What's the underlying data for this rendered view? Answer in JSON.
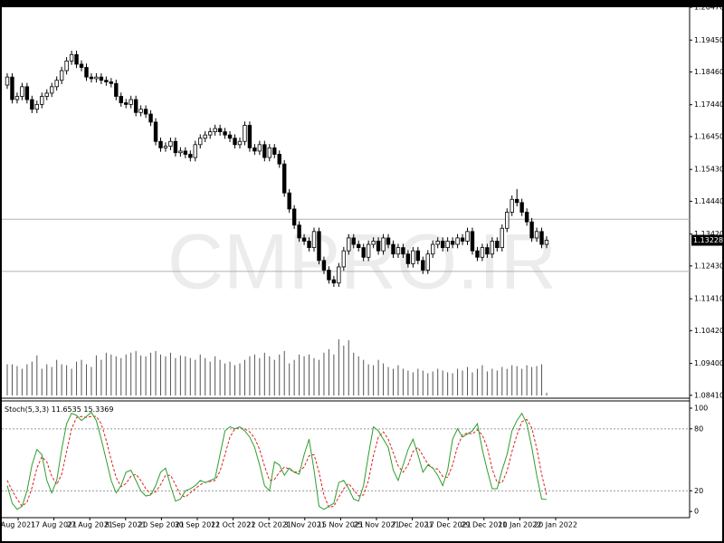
{
  "chart_data": {
    "type": "candlestick",
    "watermark": "CMPRO.IR",
    "open": [
      1.1805,
      1.183,
      1.176,
      1.177,
      1.18,
      1.176,
      1.173,
      1.1745,
      1.177,
      1.178,
      1.18,
      1.182,
      1.185,
      1.188,
      1.19,
      1.187,
      1.186,
      1.183,
      1.1825,
      1.183,
      1.182,
      1.1815,
      1.181,
      1.177,
      1.175,
      1.1745,
      1.176,
      1.172,
      1.173,
      1.1715,
      1.169,
      1.163,
      1.161,
      1.1615,
      1.163,
      1.1595,
      1.16,
      1.159,
      1.158,
      1.162,
      1.164,
      1.165,
      1.166,
      1.167,
      1.166,
      1.165,
      1.164,
      1.162,
      1.163,
      1.168,
      1.161,
      1.16,
      1.162,
      1.158,
      1.161,
      1.159,
      1.156,
      1.147,
      1.142,
      1.137,
      1.133,
      1.132,
      1.13,
      1.135,
      1.126,
      1.123,
      1.12,
      1.119,
      1.124,
      1.129,
      1.133,
      1.131,
      1.13,
      1.127,
      1.131,
      1.132,
      1.129,
      1.133,
      1.131,
      1.128,
      1.13,
      1.128,
      1.125,
      1.129,
      1.126,
      1.123,
      1.128,
      1.131,
      1.132,
      1.13,
      1.132,
      1.131,
      1.133,
      1.132,
      1.135,
      1.129,
      1.127,
      1.13,
      1.128,
      1.132,
      1.13,
      1.136,
      1.141,
      1.145,
      1.144,
      1.141,
      1.138,
      1.133,
      1.135,
      1.131
    ],
    "high": [
      1.1842,
      1.1842,
      1.1782,
      1.1812,
      1.1812,
      1.1772,
      1.1757,
      1.1782,
      1.1792,
      1.1812,
      1.1832,
      1.1862,
      1.1892,
      1.1912,
      1.1912,
      1.1882,
      1.1872,
      1.1842,
      1.1842,
      1.1842,
      1.1832,
      1.1827,
      1.1822,
      1.1782,
      1.1762,
      1.1772,
      1.1772,
      1.1742,
      1.1742,
      1.1727,
      1.1702,
      1.1642,
      1.1627,
      1.1642,
      1.1642,
      1.1612,
      1.1612,
      1.1602,
      1.1632,
      1.1652,
      1.1662,
      1.1672,
      1.1682,
      1.1682,
      1.1672,
      1.1662,
      1.1652,
      1.1642,
      1.1692,
      1.1692,
      1.1622,
      1.1632,
      1.1632,
      1.1622,
      1.1622,
      1.1602,
      1.1572,
      1.1482,
      1.1432,
      1.1382,
      1.1342,
      1.1332,
      1.1362,
      1.1362,
      1.1272,
      1.1242,
      1.1212,
      1.1252,
      1.1302,
      1.1342,
      1.1342,
      1.1322,
      1.1312,
      1.1322,
      1.1332,
      1.1332,
      1.1342,
      1.1342,
      1.1322,
      1.1312,
      1.1312,
      1.1292,
      1.1302,
      1.1302,
      1.1272,
      1.1292,
      1.1322,
      1.1332,
      1.1332,
      1.1332,
      1.1332,
      1.1342,
      1.1342,
      1.1362,
      1.1362,
      1.1302,
      1.1312,
      1.1312,
      1.1332,
      1.1332,
      1.1372,
      1.1422,
      1.1462,
      1.1482,
      1.1452,
      1.1422,
      1.1392,
      1.1362,
      1.1362,
      1.1335
    ],
    "low": [
      1.1793,
      1.1748,
      1.1748,
      1.1758,
      1.1748,
      1.1718,
      1.1718,
      1.1733,
      1.1758,
      1.1768,
      1.1788,
      1.1808,
      1.1838,
      1.1868,
      1.1858,
      1.1848,
      1.1818,
      1.1813,
      1.1813,
      1.1808,
      1.1803,
      1.1798,
      1.1758,
      1.1738,
      1.1733,
      1.1733,
      1.1708,
      1.1708,
      1.1703,
      1.1678,
      1.1618,
      1.1598,
      1.1598,
      1.1603,
      1.1583,
      1.1583,
      1.1578,
      1.1568,
      1.1568,
      1.1608,
      1.1628,
      1.1638,
      1.1648,
      1.1648,
      1.1638,
      1.1628,
      1.1608,
      1.1608,
      1.1618,
      1.1598,
      1.1588,
      1.1588,
      1.1568,
      1.1568,
      1.1578,
      1.1548,
      1.1458,
      1.1408,
      1.1358,
      1.1318,
      1.1308,
      1.1288,
      1.1288,
      1.1248,
      1.1218,
      1.1188,
      1.1178,
      1.1178,
      1.1228,
      1.1278,
      1.1298,
      1.1288,
      1.1258,
      1.1258,
      1.1298,
      1.1278,
      1.1278,
      1.1298,
      1.1268,
      1.1268,
      1.1268,
      1.1238,
      1.1238,
      1.1248,
      1.1218,
      1.1218,
      1.1268,
      1.1298,
      1.1288,
      1.1288,
      1.1298,
      1.1298,
      1.1308,
      1.1308,
      1.1278,
      1.1258,
      1.1258,
      1.1268,
      1.1268,
      1.1288,
      1.1288,
      1.1348,
      1.1398,
      1.1428,
      1.1398,
      1.1368,
      1.1318,
      1.1318,
      1.1298,
      1.1298
    ],
    "close": [
      1.183,
      1.176,
      1.177,
      1.18,
      1.176,
      1.173,
      1.1745,
      1.177,
      1.178,
      1.18,
      1.182,
      1.185,
      1.188,
      1.19,
      1.187,
      1.186,
      1.183,
      1.1825,
      1.183,
      1.182,
      1.1815,
      1.181,
      1.177,
      1.175,
      1.1745,
      1.176,
      1.172,
      1.173,
      1.1715,
      1.169,
      1.163,
      1.161,
      1.1615,
      1.163,
      1.1595,
      1.16,
      1.159,
      1.158,
      1.162,
      1.164,
      1.165,
      1.166,
      1.167,
      1.166,
      1.165,
      1.164,
      1.162,
      1.163,
      1.168,
      1.161,
      1.16,
      1.162,
      1.158,
      1.161,
      1.159,
      1.156,
      1.147,
      1.142,
      1.137,
      1.133,
      1.132,
      1.13,
      1.135,
      1.126,
      1.123,
      1.12,
      1.119,
      1.124,
      1.129,
      1.133,
      1.131,
      1.13,
      1.127,
      1.131,
      1.132,
      1.129,
      1.133,
      1.131,
      1.128,
      1.13,
      1.128,
      1.125,
      1.129,
      1.126,
      1.123,
      1.128,
      1.131,
      1.132,
      1.13,
      1.132,
      1.131,
      1.133,
      1.132,
      1.135,
      1.129,
      1.127,
      1.13,
      1.128,
      1.132,
      1.13,
      1.136,
      1.141,
      1.145,
      1.144,
      1.141,
      1.138,
      1.133,
      1.135,
      1.131,
      1.13228
    ],
    "volume": [
      35,
      35,
      33,
      30,
      35,
      38,
      45,
      30,
      35,
      32,
      40,
      35,
      34,
      30,
      38,
      40,
      35,
      32,
      45,
      40,
      48,
      46,
      44,
      42,
      46,
      48,
      50,
      45,
      44,
      48,
      50,
      46,
      44,
      48,
      42,
      45,
      44,
      42,
      40,
      46,
      42,
      38,
      44,
      40,
      36,
      38,
      34,
      36,
      40,
      44,
      46,
      42,
      48,
      44,
      40,
      46,
      50,
      36,
      40,
      46,
      44,
      46,
      42,
      40,
      48,
      52,
      46,
      63,
      56,
      62,
      48,
      44,
      40,
      35,
      34,
      40,
      36,
      32,
      30,
      34,
      30,
      28,
      26,
      30,
      28,
      25,
      27,
      30,
      28,
      26,
      25,
      30,
      28,
      32,
      26,
      30,
      34,
      27,
      30,
      28,
      32,
      30,
      34,
      33,
      30,
      34,
      32,
      33,
      35,
      3
    ],
    "up_color": "#ffffff",
    "down_color": "#000000",
    "volume_color": "#555555",
    "ylim": [
      1.0832,
      1.2047
    ],
    "yticks": [
      {
        "value": 1.2047,
        "label": "1.20470"
      },
      {
        "value": 1.1945,
        "label": "1.19450"
      },
      {
        "value": 1.1846,
        "label": "1.18460"
      },
      {
        "value": 1.1744,
        "label": "1.17440"
      },
      {
        "value": 1.1645,
        "label": "1.16450"
      },
      {
        "value": 1.1543,
        "label": "1.15430"
      },
      {
        "value": 1.1444,
        "label": "1.14440"
      },
      {
        "value": 1.1342,
        "label": "1.13420"
      },
      {
        "value": 1.1243,
        "label": "1.12430"
      },
      {
        "value": 1.1141,
        "label": "1.11410"
      },
      {
        "value": 1.1042,
        "label": "1.10420"
      },
      {
        "value": 1.094,
        "label": "1.09400"
      },
      {
        "value": 1.0841,
        "label": "1.08410"
      }
    ],
    "hlines": [
      1.1388,
      1.1226
    ],
    "hline_color": "#b0b0b0",
    "last_price": 1.13228,
    "x_labels": [
      "Aug 2021",
      "17 Aug 2021",
      "27 Aug 2021",
      "8 Sep 2021",
      "20 Sep 2021",
      "30 Sep 2021",
      "12 Oct 2021",
      "22 Oct 2021",
      "3 Nov 2021",
      "15 Nov 2021",
      "25 Nov 2021",
      "7 Dec 2021",
      "17 Dec 2021",
      "29 Dec 2021",
      "10 Jan 2022",
      "20 Jan 2022"
    ],
    "stoch": {
      "label": "Stoch(5,3,3)",
      "k": [
        25,
        8,
        2,
        5,
        20,
        45,
        60,
        55,
        30,
        18,
        30,
        60,
        85,
        95,
        93,
        88,
        92,
        96,
        88,
        70,
        50,
        30,
        18,
        25,
        38,
        40,
        30,
        20,
        15,
        16,
        25,
        38,
        42,
        25,
        10,
        12,
        20,
        22,
        25,
        30,
        28,
        30,
        32,
        55,
        78,
        82,
        80,
        82,
        78,
        72,
        62,
        45,
        25,
        20,
        48,
        45,
        35,
        42,
        38,
        36,
        55,
        70,
        40,
        5,
        2,
        5,
        8,
        28,
        30,
        22,
        12,
        10,
        25,
        55,
        82,
        78,
        70,
        62,
        40,
        30,
        45,
        60,
        70,
        55,
        38,
        45,
        42,
        35,
        25,
        40,
        70,
        80,
        72,
        75,
        78,
        85,
        60,
        40,
        22,
        22,
        40,
        55,
        78,
        88,
        95,
        85,
        62,
        35,
        12,
        11.6535
      ],
      "d": [
        30,
        20,
        12,
        5,
        9,
        23,
        42,
        53,
        48,
        34,
        26,
        36,
        58,
        80,
        91,
        92,
        91,
        92,
        92,
        85,
        69,
        50,
        33,
        24,
        27,
        34,
        36,
        30,
        22,
        17,
        19,
        26,
        35,
        35,
        26,
        16,
        14,
        18,
        22,
        26,
        28,
        29,
        30,
        39,
        55,
        72,
        80,
        81,
        80,
        77,
        71,
        60,
        44,
        30,
        31,
        38,
        43,
        41,
        38,
        39,
        43,
        54,
        55,
        38,
        16,
        4,
        5,
        14,
        22,
        27,
        21,
        15,
        16,
        30,
        54,
        72,
        77,
        70,
        57,
        44,
        38,
        45,
        58,
        62,
        54,
        46,
        42,
        41,
        34,
        33,
        45,
        63,
        74,
        76,
        75,
        79,
        74,
        62,
        41,
        28,
        28,
        39,
        58,
        74,
        87,
        89,
        81,
        61,
        36,
        15.3369
      ],
      "k_color": "#2e9e2e",
      "d_color": "#e02020",
      "ylim": [
        -6,
        107
      ],
      "yticks": [
        0,
        20,
        80,
        100
      ],
      "levels": [
        20,
        80
      ]
    }
  }
}
